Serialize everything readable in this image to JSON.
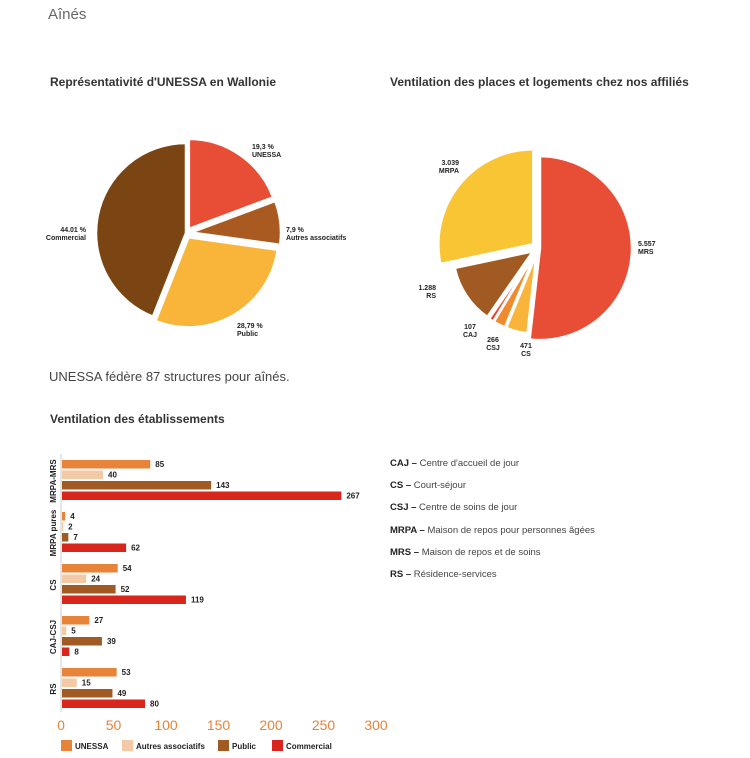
{
  "page": {
    "title": "Aînés",
    "summary": "UNESSA fédère 87 structures pour aînés."
  },
  "colors": {
    "unessa": "#e8833a",
    "autres": "#f4c9a6",
    "public": "#a05a22",
    "commercial": "#d9261c",
    "pie1": [
      "#e84d35",
      "#a85a20",
      "#f9b43a",
      "#7a4512"
    ],
    "pie2": [
      "#e84d35",
      "#f9b43a",
      "#f08a2e",
      "#e8432c",
      "#a05a22",
      "#f9c535"
    ],
    "axis_text": "#e8833a"
  },
  "chart_data": [
    {
      "type": "pie",
      "title": "Représentativité d'UNESSA en Wallonie",
      "slices": [
        {
          "label": "UNESSA",
          "value": 19.3,
          "value_label": "19,3 %"
        },
        {
          "label": "Autres associatifs",
          "value": 7.9,
          "value_label": "7,9 %"
        },
        {
          "label": "Public",
          "value": 28.79,
          "value_label": "28,79 %"
        },
        {
          "label": "Commercial",
          "value": 44.01,
          "value_label": "44.01 %"
        }
      ]
    },
    {
      "type": "pie",
      "title": "Ventilation des places et logements chez nos affiliés",
      "slices": [
        {
          "label": "MRS",
          "value": 5557,
          "value_label": "5.557"
        },
        {
          "label": "CS",
          "value": 471,
          "value_label": "471"
        },
        {
          "label": "CSJ",
          "value": 266,
          "value_label": "266"
        },
        {
          "label": "CAJ",
          "value": 107,
          "value_label": "107"
        },
        {
          "label": "RS",
          "value": 1288,
          "value_label": "1.288"
        },
        {
          "label": "MRPA",
          "value": 3039,
          "value_label": "3.039"
        }
      ]
    },
    {
      "type": "bar",
      "orientation": "horizontal",
      "title": "Ventilation des établissements",
      "categories": [
        "MRPA-MRS",
        "MRPA pures",
        "CS",
        "CAJ-CSJ",
        "RS"
      ],
      "series": [
        {
          "name": "UNESSA",
          "values": [
            85,
            4,
            54,
            27,
            53
          ]
        },
        {
          "name": "Autres associatifs",
          "values": [
            40,
            2,
            24,
            5,
            15
          ]
        },
        {
          "name": "Public",
          "values": [
            143,
            7,
            52,
            39,
            49
          ]
        },
        {
          "name": "Commercial",
          "values": [
            267,
            62,
            119,
            8,
            80
          ]
        }
      ],
      "xlim": [
        0,
        300
      ],
      "xticks": [
        0,
        50,
        100,
        150,
        200,
        250,
        300
      ],
      "legend_position": "bottom-left"
    }
  ],
  "glossary": [
    {
      "abbr": "CAJ",
      "desc": "Centre d'accueil de jour"
    },
    {
      "abbr": "CS",
      "desc": "Court-séjour"
    },
    {
      "abbr": "CSJ",
      "desc": "Centre de soins de jour"
    },
    {
      "abbr": "MRPA",
      "desc": "Maison de repos pour personnes âgées"
    },
    {
      "abbr": "MRS",
      "desc": "Maison de repos et de soins"
    },
    {
      "abbr": "RS",
      "desc": "Résidence-services"
    }
  ]
}
